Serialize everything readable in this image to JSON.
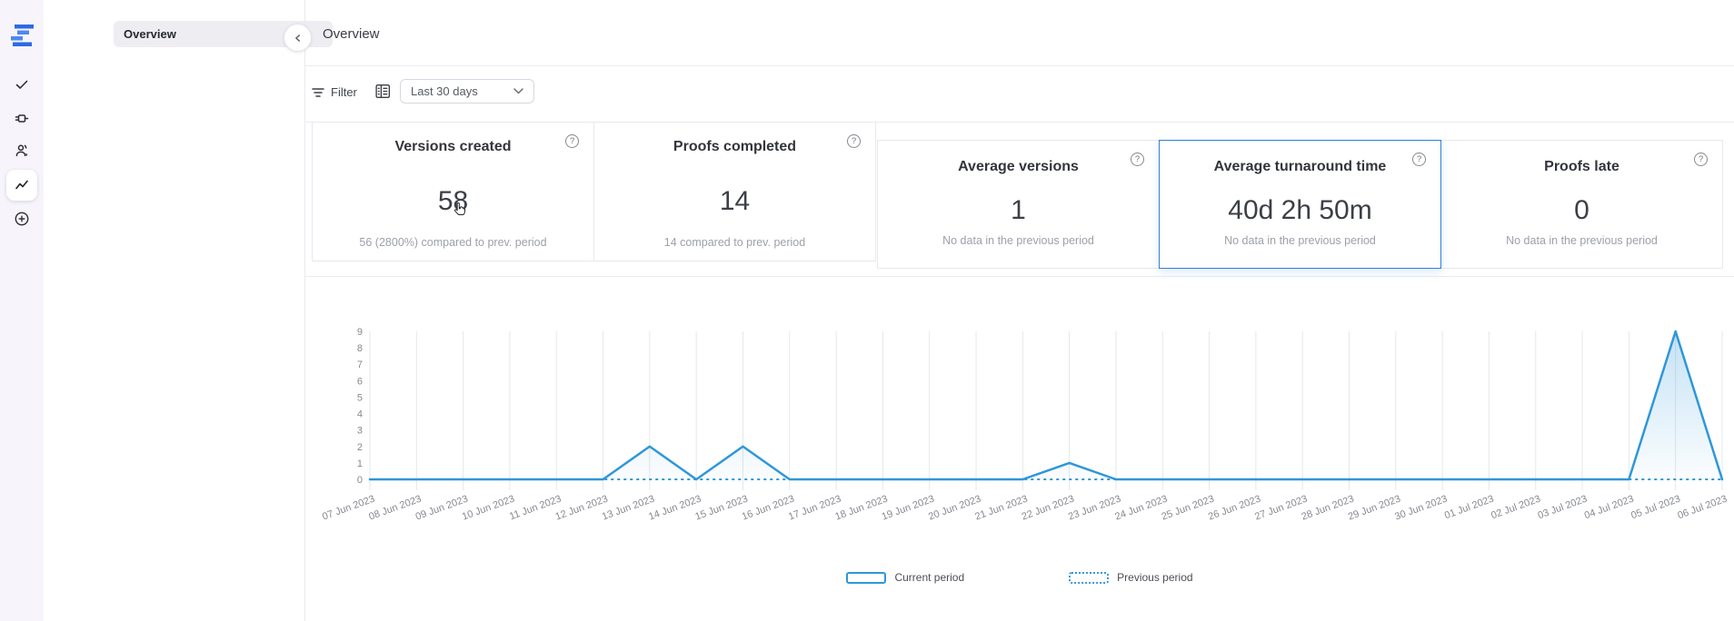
{
  "icons": {
    "help_glyph": "?"
  },
  "sidebar": {
    "items": [
      {
        "name": "proofs"
      },
      {
        "name": "automation"
      },
      {
        "name": "contacts"
      },
      {
        "name": "insights",
        "active": true
      },
      {
        "name": "create-new"
      }
    ]
  },
  "panel": {
    "selected_item": "Overview"
  },
  "header": {
    "title": "Overview"
  },
  "toolbar": {
    "filter_label": "Filter",
    "date_range_value": "Last 30 days"
  },
  "cards": [
    {
      "title": "Versions created",
      "value": "58",
      "subtitle": "56 (2800%) compared to prev. period",
      "selected": false
    },
    {
      "title": "Proofs completed",
      "value": "14",
      "subtitle": "14 compared to prev. period",
      "selected": false
    },
    {
      "title": "Average versions",
      "value": "1",
      "subtitle": "No data in the previous period",
      "selected": false
    },
    {
      "title": "Average turnaround time",
      "value": "40d 2h 50m",
      "subtitle": "No data in the previous period",
      "selected": true
    },
    {
      "title": "Proofs late",
      "value": "0",
      "subtitle": "No data in the previous period",
      "selected": false
    }
  ],
  "chart_data": {
    "type": "line",
    "title": "",
    "xlabel": "",
    "ylabel": "",
    "x": [
      "07 Jun 2023",
      "08 Jun 2023",
      "09 Jun 2023",
      "10 Jun 2023",
      "11 Jun 2023",
      "12 Jun 2023",
      "13 Jun 2023",
      "14 Jun 2023",
      "15 Jun 2023",
      "16 Jun 2023",
      "17 Jun 2023",
      "18 Jun 2023",
      "19 Jun 2023",
      "20 Jun 2023",
      "21 Jun 2023",
      "22 Jun 2023",
      "23 Jun 2023",
      "24 Jun 2023",
      "25 Jun 2023",
      "26 Jun 2023",
      "27 Jun 2023",
      "28 Jun 2023",
      "29 Jun 2023",
      "30 Jun 2023",
      "01 Jul 2023",
      "02 Jul 2023",
      "03 Jul 2023",
      "04 Jul 2023",
      "05 Jul 2023",
      "06 Jul 2023"
    ],
    "series": [
      {
        "name": "Current period",
        "line": "solid",
        "values": [
          0,
          0,
          0,
          0,
          0,
          0,
          2,
          0,
          2,
          0,
          0,
          0,
          0,
          0,
          0,
          1,
          0,
          0,
          0,
          0,
          0,
          0,
          0,
          0,
          0,
          0,
          0,
          0,
          9,
          0
        ]
      },
      {
        "name": "Previous period",
        "line": "dotted",
        "values": [
          0,
          0,
          0,
          0,
          0,
          0,
          0,
          0,
          0,
          0,
          0,
          0,
          0,
          0,
          0,
          0,
          0,
          0,
          0,
          0,
          0,
          0,
          0,
          0,
          0,
          0,
          0,
          0,
          0,
          0
        ]
      }
    ],
    "ylim": [
      0,
      9
    ],
    "yticks": [
      0,
      1,
      2,
      3,
      4,
      5,
      6,
      7,
      8,
      9
    ],
    "grid": "vertical-only",
    "legend_position": "bottom",
    "line_color": "#2f97d8",
    "grid_color": "#e5e7ec",
    "fill_color": "#2f97d8"
  },
  "colors": {
    "rail_bg": "#f7f5fb",
    "accent_blue": "#2f97d8",
    "selected_card_border": "#2e7fd9",
    "logo_blue_dark": "#2d6ae4",
    "logo_blue_light": "#5187ee"
  }
}
